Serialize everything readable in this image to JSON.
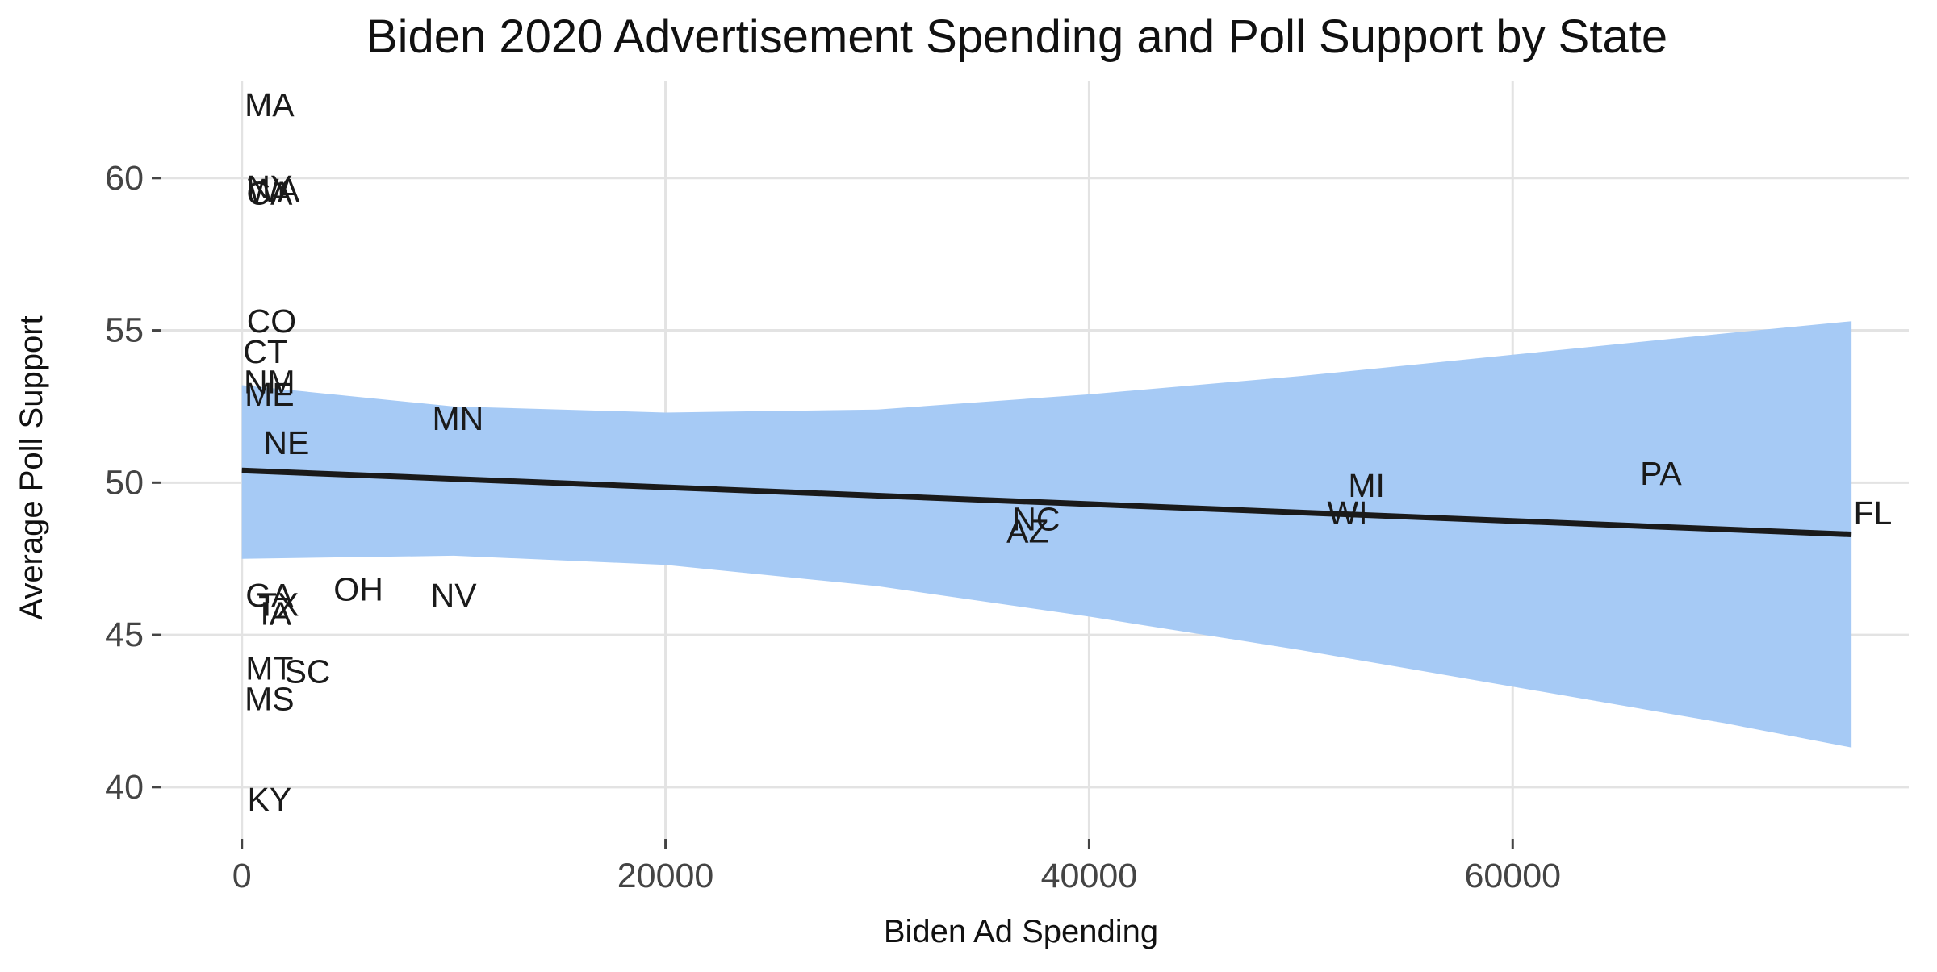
{
  "chart_data": {
    "type": "scatter",
    "title": "Biden 2020 Advertisement Spending and Poll Support by State",
    "xlabel": "Biden Ad Spending",
    "ylabel": "Average Poll Support",
    "xlim": [
      -3800,
      78700
    ],
    "ylim": [
      38.3,
      63.2
    ],
    "x_ticks": [
      0,
      20000,
      40000,
      60000
    ],
    "y_ticks": [
      40,
      45,
      50,
      55,
      60
    ],
    "grid": true,
    "points": [
      {
        "label": "MA",
        "x": 1300,
        "y": 62.4
      },
      {
        "label": "NY",
        "x": 1300,
        "y": 59.7
      },
      {
        "label": "WA",
        "x": 1500,
        "y": 59.6
      },
      {
        "label": "CA",
        "x": 1300,
        "y": 59.5
      },
      {
        "label": "CO",
        "x": 1400,
        "y": 55.3
      },
      {
        "label": "CT",
        "x": 1100,
        "y": 54.3
      },
      {
        "label": "NM",
        "x": 1300,
        "y": 53.3
      },
      {
        "label": "ME",
        "x": 1300,
        "y": 52.9
      },
      {
        "label": "NE",
        "x": 2100,
        "y": 51.3
      },
      {
        "label": "MN",
        "x": 10200,
        "y": 52.1
      },
      {
        "label": "GA",
        "x": 1300,
        "y": 46.3
      },
      {
        "label": "TX",
        "x": 1700,
        "y": 46.0
      },
      {
        "label": "IA",
        "x": 1600,
        "y": 45.7
      },
      {
        "label": "OH",
        "x": 5500,
        "y": 46.5
      },
      {
        "label": "NV",
        "x": 10000,
        "y": 46.3
      },
      {
        "label": "MT",
        "x": 1300,
        "y": 43.9
      },
      {
        "label": "SC",
        "x": 3100,
        "y": 43.8
      },
      {
        "label": "MS",
        "x": 1300,
        "y": 42.9
      },
      {
        "label": "KY",
        "x": 1300,
        "y": 39.6
      },
      {
        "label": "NC",
        "x": 37500,
        "y": 48.8
      },
      {
        "label": "AZ",
        "x": 37100,
        "y": 48.4
      },
      {
        "label": "WI",
        "x": 52200,
        "y": 49.0
      },
      {
        "label": "MI",
        "x": 53100,
        "y": 49.9
      },
      {
        "label": "PA",
        "x": 67000,
        "y": 50.3
      },
      {
        "label": "FL",
        "x": 77000,
        "y": 49.0
      }
    ],
    "trend_line": {
      "x": [
        0,
        76000
      ],
      "y": [
        50.4,
        48.3
      ],
      "color": "#1a1a1a"
    },
    "confidence_band": {
      "color": "#a4c9f5",
      "x": [
        0,
        10000,
        20000,
        30000,
        40000,
        50000,
        60000,
        70000,
        76000
      ],
      "upper": [
        53.2,
        52.5,
        52.3,
        52.4,
        52.9,
        53.5,
        54.2,
        54.9,
        55.3
      ],
      "lower": [
        47.5,
        47.6,
        47.3,
        46.6,
        45.6,
        44.5,
        43.3,
        42.1,
        41.3
      ]
    }
  }
}
